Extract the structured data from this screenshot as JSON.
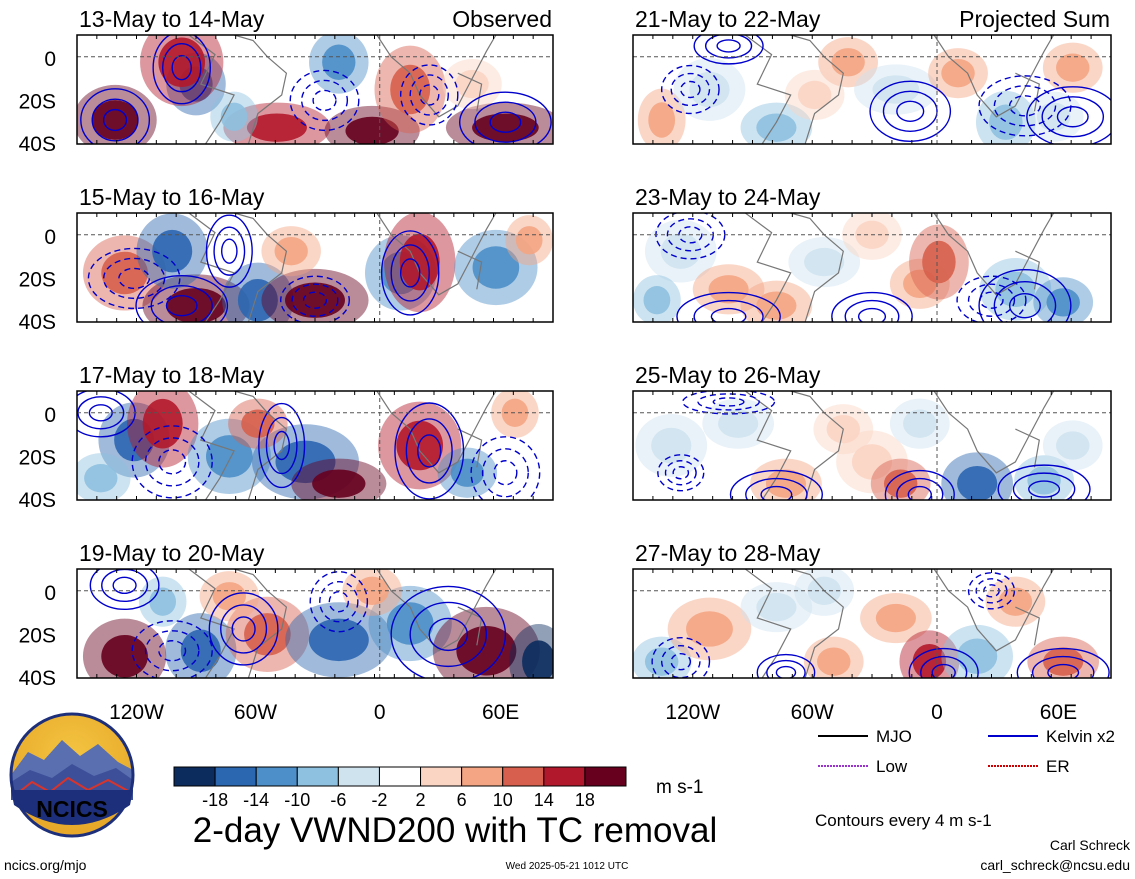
{
  "chart_data": {
    "type": "heatmap",
    "variable": "2-day VWND200 with TC removal",
    "units": "m s-1",
    "x_ticks": [
      "120W",
      "60W",
      "0",
      "60E"
    ],
    "y_ticks": [
      "0",
      "20S",
      "40S"
    ],
    "columns": [
      {
        "label": "Observed",
        "panels": [
          {
            "period": "13-May to 14-May"
          },
          {
            "period": "15-May to 16-May"
          },
          {
            "period": "17-May to 18-May"
          },
          {
            "period": "19-May to 20-May"
          }
        ]
      },
      {
        "label": "Projected Sum",
        "panels": [
          {
            "period": "21-May to 22-May"
          },
          {
            "period": "23-May to 24-May"
          },
          {
            "period": "25-May to 26-May"
          },
          {
            "period": "27-May to 28-May"
          }
        ]
      }
    ],
    "colorbar": {
      "labels": [
        "-18",
        "-14",
        "-10",
        "-6",
        "-2",
        "2",
        "6",
        "10",
        "14",
        "18"
      ],
      "colors": [
        "#0c2c5e",
        "#2b66b0",
        "#4d8fc8",
        "#8ec0df",
        "#cfe3ef",
        "#ffffff",
        "#fbd5c4",
        "#f4a583",
        "#d6604d",
        "#b2182b",
        "#67001f"
      ]
    },
    "contour_legend": [
      {
        "label": "MJO",
        "color": "#000000"
      },
      {
        "label": "Kelvin x2",
        "color": "#0000cc"
      },
      {
        "label": "Low",
        "color": "#9933cc"
      },
      {
        "label": "ER",
        "color": "#cc0000"
      }
    ],
    "contour_note": "Contours every 4 m s-1",
    "title": "2-day VWND200 with TC removal"
  },
  "logo": {
    "text": "NCICS"
  },
  "footer": {
    "site": "ncics.org/mjo",
    "timestamp": "Wed 2025-05-21 1012 UTC",
    "author": "Carl Schreck",
    "email": "carl_schreck@ncsu.edu"
  }
}
